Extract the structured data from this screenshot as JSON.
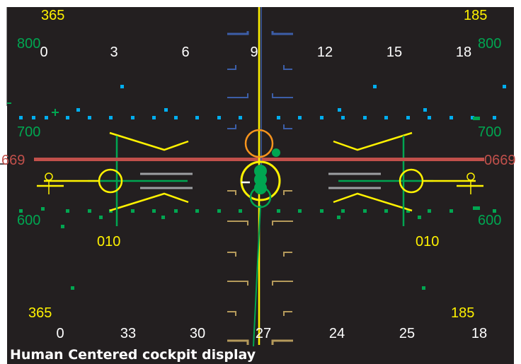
{
  "display": {
    "caption": "Human Centered cockpit display",
    "colors": {
      "background": "#231f20",
      "yellow": "#fff200",
      "green": "#00a651",
      "red": "#c1504b",
      "cyan": "#00aeef",
      "blue": "#3c5ea8",
      "orange": "#f7941d",
      "tan": "#b59a5b",
      "gray": "#9d9fa2",
      "white": "#ffffff"
    },
    "corners": {
      "top_left": "365",
      "top_right": "185",
      "bottom_left": "365",
      "bottom_right": "185"
    },
    "top_scale": [
      "0",
      "3",
      "6",
      "9",
      "12",
      "15",
      "18"
    ],
    "bottom_scale": [
      "0",
      "33",
      "30",
      "27",
      "24",
      "25",
      "18"
    ],
    "altitude_left": [
      "800",
      "700",
      "600"
    ],
    "altitude_right": [
      "800",
      "700",
      "600"
    ],
    "reference_left": "669",
    "reference_right": "0669",
    "heading_left": "010",
    "heading_right": "010"
  }
}
